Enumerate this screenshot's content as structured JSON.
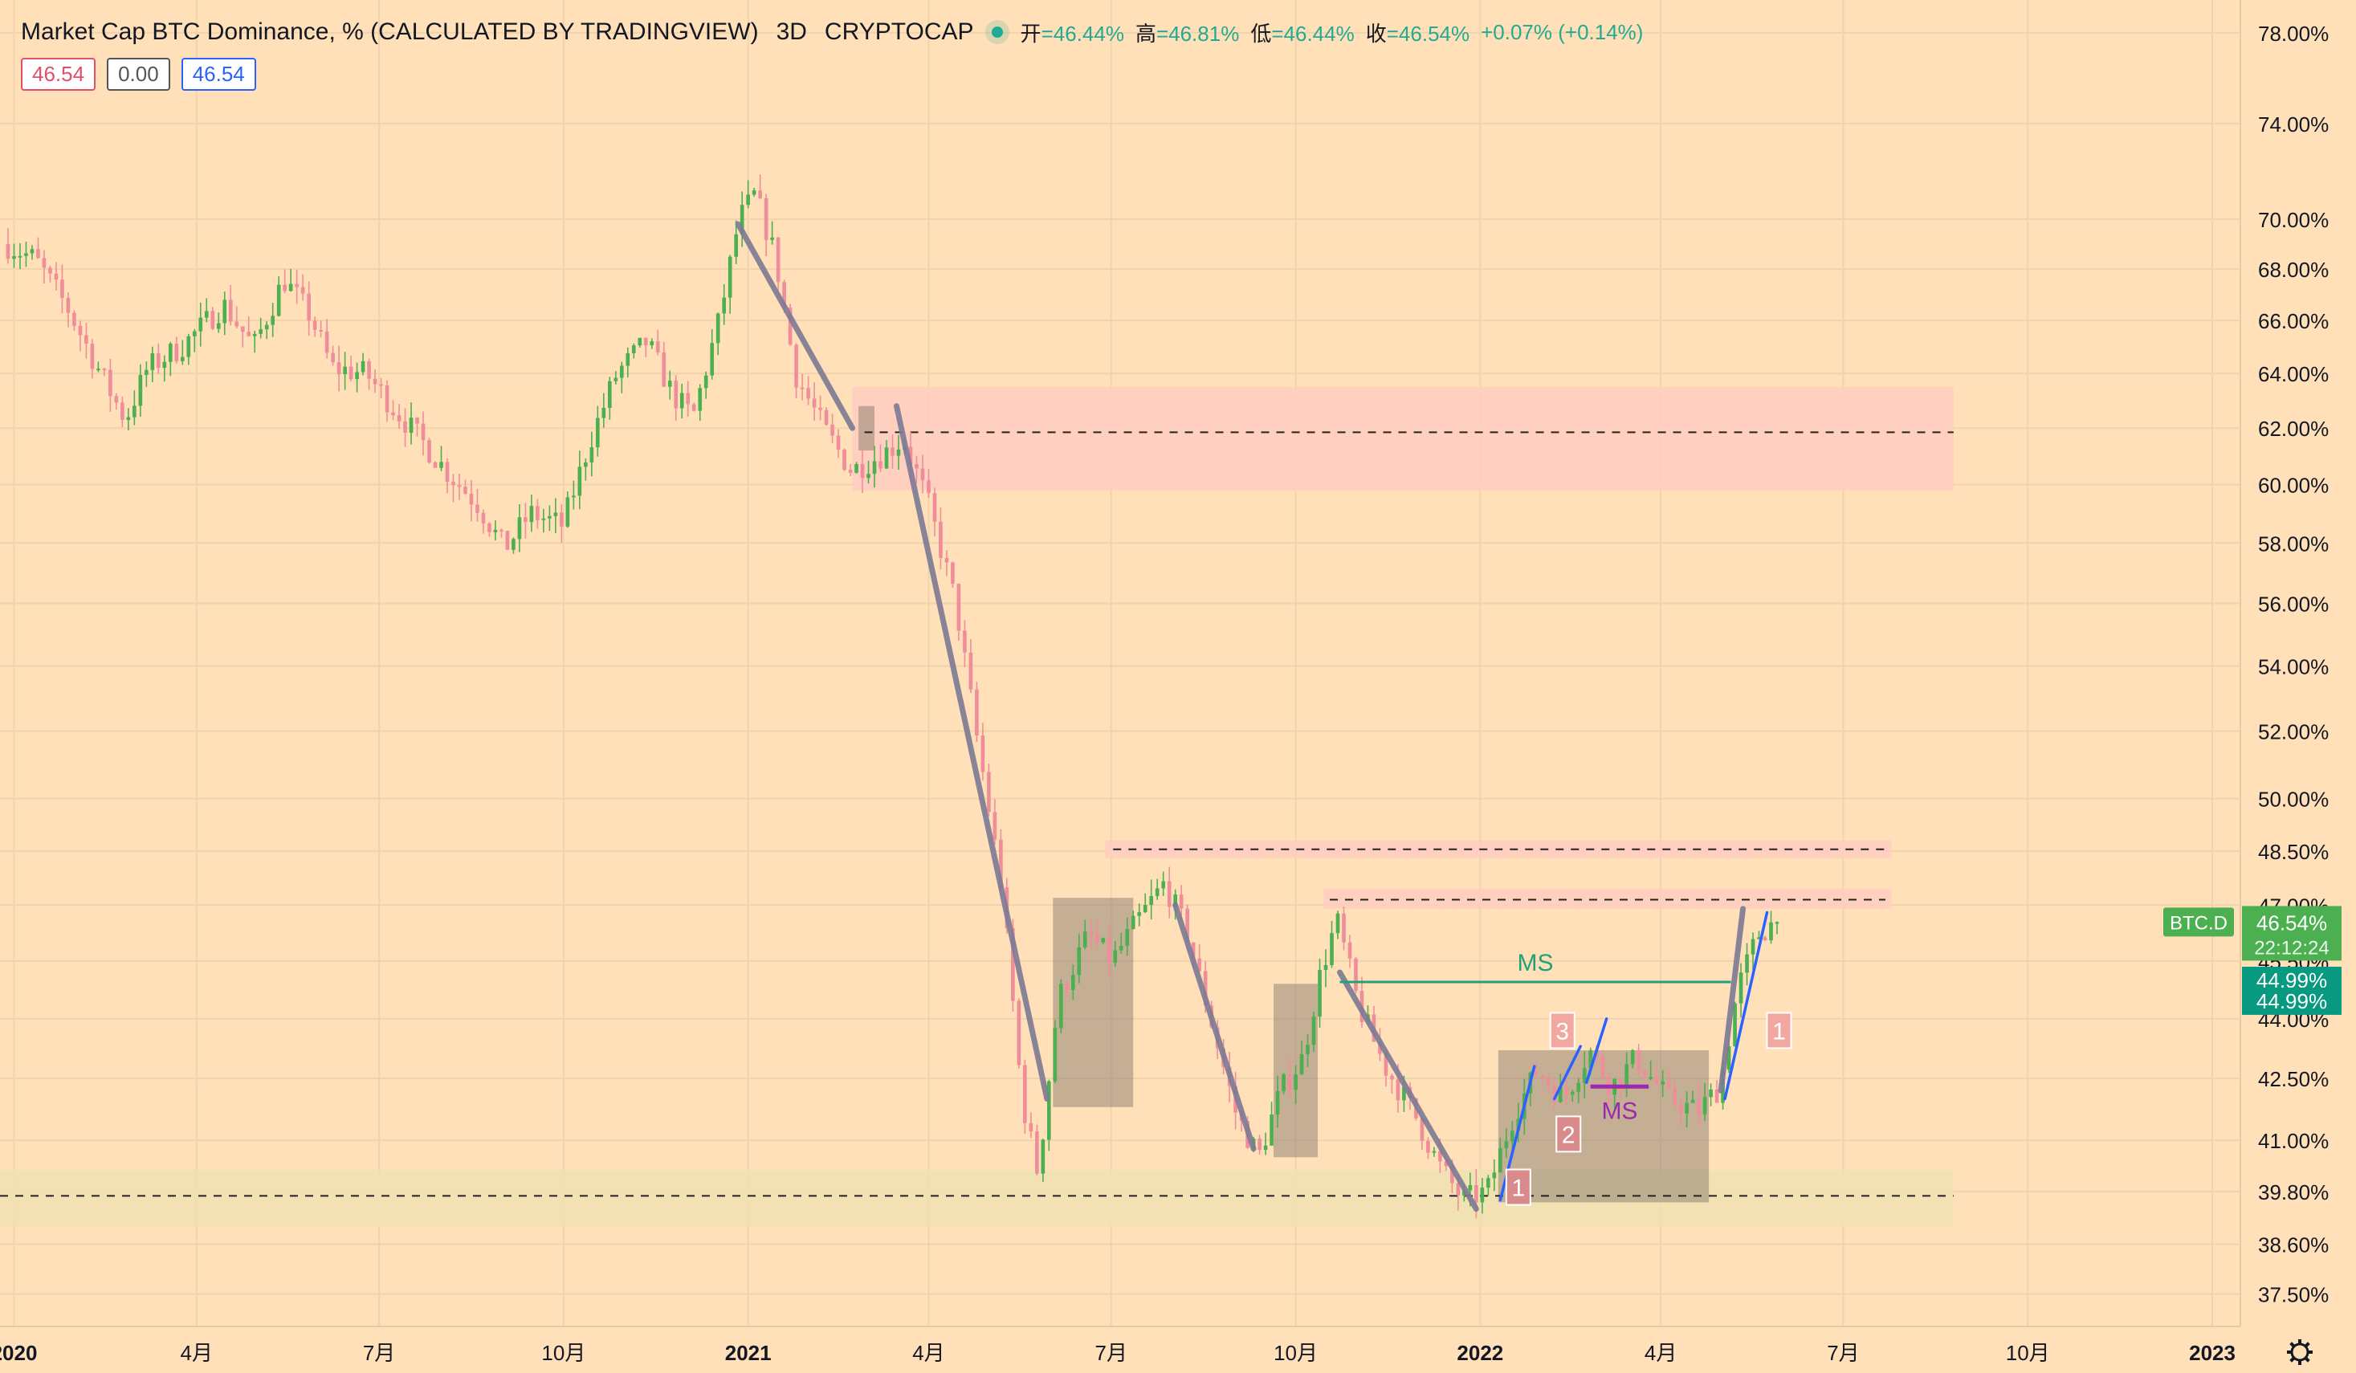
{
  "header": {
    "title": "Market Cap BTC Dominance, % (CALCULATED BY TRADINGVIEW)",
    "interval": "3D",
    "exchange": "CRYPTOCAP",
    "ohlc": [
      {
        "label": "开",
        "value": "46.44%"
      },
      {
        "label": "高",
        "value": "46.81%"
      },
      {
        "label": "低",
        "value": "46.44%"
      },
      {
        "label": "收",
        "value": "46.54%"
      },
      {
        "label": "",
        "value": "+0.07% (+0.14%)"
      }
    ]
  },
  "pills": {
    "sell": "46.54",
    "spread": "0.00",
    "buy": "46.54"
  },
  "chart_data": {
    "type": "candlestick",
    "symbol": "BTC.D",
    "y_scale": "log",
    "ylim": [
      36.8,
      79.5
    ],
    "xlim": [
      "2019-12-25",
      "2023-01-15"
    ],
    "y_ticks": [
      "78.00%",
      "74.00%",
      "70.00%",
      "68.00%",
      "66.00%",
      "64.00%",
      "62.00%",
      "60.00%",
      "58.00%",
      "56.00%",
      "54.00%",
      "52.00%",
      "50.00%",
      "48.50%",
      "47.00%",
      "45.50%",
      "44.00%",
      "42.50%",
      "41.00%",
      "39.80%",
      "38.60%",
      "37.50%"
    ],
    "x_ticks": [
      {
        "label": "2020",
        "date": "2020-01-01"
      },
      {
        "label": "4月",
        "date": "2020-04-01"
      },
      {
        "label": "7月",
        "date": "2020-07-01"
      },
      {
        "label": "10月",
        "date": "2020-10-01"
      },
      {
        "label": "2021",
        "date": "2021-01-01"
      },
      {
        "label": "4月",
        "date": "2021-04-01"
      },
      {
        "label": "7月",
        "date": "2021-07-01"
      },
      {
        "label": "10月",
        "date": "2021-10-01"
      },
      {
        "label": "2022",
        "date": "2022-01-01"
      },
      {
        "label": "4月",
        "date": "2022-04-01"
      },
      {
        "label": "7月",
        "date": "2022-07-01"
      },
      {
        "label": "10月",
        "date": "2022-10-01"
      },
      {
        "label": "2023",
        "date": "2023-01-01"
      }
    ],
    "price_path": [
      [
        "2019-12-28",
        69.0
      ],
      [
        "2020-01-12",
        68.4
      ],
      [
        "2020-01-28",
        66.5
      ],
      [
        "2020-02-15",
        63.8
      ],
      [
        "2020-02-26",
        62.3
      ],
      [
        "2020-03-08",
        64.2
      ],
      [
        "2020-03-25",
        65.0
      ],
      [
        "2020-04-15",
        66.6
      ],
      [
        "2020-04-30",
        65.0
      ],
      [
        "2020-05-15",
        67.6
      ],
      [
        "2020-05-28",
        66.2
      ],
      [
        "2020-06-08",
        64.2
      ],
      [
        "2020-06-25",
        64.0
      ],
      [
        "2020-07-08",
        62.8
      ],
      [
        "2020-07-22",
        61.6
      ],
      [
        "2020-08-05",
        60.4
      ],
      [
        "2020-08-20",
        59.3
      ],
      [
        "2020-09-02",
        57.8
      ],
      [
        "2020-09-15",
        59.0
      ],
      [
        "2020-10-01",
        58.6
      ],
      [
        "2020-10-15",
        61.6
      ],
      [
        "2020-10-28",
        64.0
      ],
      [
        "2020-11-12",
        65.2
      ],
      [
        "2020-11-25",
        63.2
      ],
      [
        "2020-12-05",
        62.4
      ],
      [
        "2020-12-18",
        66.0
      ],
      [
        "2020-12-28",
        70.0
      ],
      [
        "2021-01-05",
        71.0
      ],
      [
        "2021-01-15",
        68.5
      ],
      [
        "2021-01-25",
        64.0
      ],
      [
        "2021-02-08",
        62.0
      ],
      [
        "2021-02-22",
        60.5
      ],
      [
        "2021-03-08",
        61.0
      ],
      [
        "2021-03-20",
        61.6
      ],
      [
        "2021-04-01",
        59.4
      ],
      [
        "2021-04-15",
        56.0
      ],
      [
        "2021-04-25",
        52.0
      ],
      [
        "2021-05-08",
        47.5
      ],
      [
        "2021-05-18",
        42.0
      ],
      [
        "2021-05-26",
        40.2
      ],
      [
        "2021-06-05",
        44.5
      ],
      [
        "2021-06-20",
        46.2
      ],
      [
        "2021-07-02",
        45.5
      ],
      [
        "2021-07-15",
        46.6
      ],
      [
        "2021-07-28",
        47.6
      ],
      [
        "2021-08-08",
        46.3
      ],
      [
        "2021-08-20",
        44.0
      ],
      [
        "2021-09-02",
        41.6
      ],
      [
        "2021-09-13",
        40.6
      ],
      [
        "2021-09-24",
        42.2
      ],
      [
        "2021-10-05",
        43.0
      ],
      [
        "2021-10-14",
        45.2
      ],
      [
        "2021-10-22",
        46.6
      ],
      [
        "2021-11-02",
        44.3
      ],
      [
        "2021-11-15",
        42.8
      ],
      [
        "2021-11-30",
        41.6
      ],
      [
        "2021-12-12",
        40.4
      ],
      [
        "2021-12-24",
        39.6
      ],
      [
        "2022-01-05",
        39.8
      ],
      [
        "2022-01-18",
        41.6
      ],
      [
        "2022-01-30",
        42.7
      ],
      [
        "2022-02-12",
        42.0
      ],
      [
        "2022-02-25",
        43.2
      ],
      [
        "2022-03-08",
        42.3
      ],
      [
        "2022-03-20",
        43.0
      ],
      [
        "2022-04-05",
        42.0
      ],
      [
        "2022-04-20",
        41.7
      ],
      [
        "2022-05-01",
        42.3
      ],
      [
        "2022-05-10",
        44.8
      ],
      [
        "2022-05-20",
        46.2
      ],
      [
        "2022-05-28",
        46.54
      ]
    ],
    "zones": [
      {
        "from": "2021-02-22",
        "to": "2022-08-25",
        "top": 63.5,
        "bottom": 59.8,
        "color": "#ffcdc0"
      },
      {
        "from": "2019-12-25",
        "to": "2022-08-25",
        "top": 40.3,
        "bottom": 39.0,
        "color": "#eee0b2"
      },
      {
        "from": "2021-06-28",
        "to": "2022-07-25",
        "top": 48.8,
        "bottom": 48.3,
        "color": "#ffcdc0"
      },
      {
        "from": "2021-10-15",
        "to": "2022-07-25",
        "top": 47.45,
        "bottom": 46.9,
        "color": "#ffcdc0"
      }
    ],
    "boxes": [
      {
        "from": "2021-06-02",
        "to": "2021-07-12",
        "top": 47.2,
        "bottom": 41.8
      },
      {
        "from": "2021-09-20",
        "to": "2021-10-12",
        "top": 44.9,
        "bottom": 40.6
      },
      {
        "from": "2022-01-10",
        "to": "2022-04-25",
        "top": 43.2,
        "bottom": 39.55
      },
      {
        "from": "2021-02-25",
        "to": "2021-03-05",
        "top": 62.8,
        "bottom": 61.2
      }
    ],
    "level_lines": [
      {
        "from": "2021-02-28",
        "to": "2022-08-25",
        "y": 61.85,
        "style": "dashed"
      },
      {
        "from": "2019-12-25",
        "to": "2022-08-25",
        "y": 39.7,
        "style": "dashed"
      },
      {
        "from": "2021-07-02",
        "to": "2022-07-22",
        "y": 48.55,
        "style": "dashed"
      },
      {
        "from": "2021-10-18",
        "to": "2022-07-22",
        "y": 47.15,
        "style": "dashed"
      }
    ],
    "trend_lines": [
      {
        "from": [
          "2020-12-27",
          69.8
        ],
        "to": [
          "2021-02-22",
          62.0
        ]
      },
      {
        "from": [
          "2021-03-16",
          62.8
        ],
        "to": [
          "2021-05-30",
          42.0
        ]
      },
      {
        "from": [
          "2021-08-02",
          47.0
        ],
        "to": [
          "2021-09-10",
          40.8
        ]
      },
      {
        "from": [
          "2021-10-23",
          45.2
        ],
        "to": [
          "2021-12-30",
          39.4
        ]
      },
      {
        "from": [
          "2022-05-01",
          42.2
        ],
        "to": [
          "2022-05-12",
          46.9
        ]
      }
    ],
    "blue_lines": [
      {
        "from": [
          "2022-01-11",
          39.6
        ],
        "to": [
          "2022-01-28",
          42.8
        ]
      },
      {
        "from": [
          "2022-02-07",
          42.0
        ],
        "to": [
          "2022-02-20",
          43.3
        ]
      },
      {
        "from": [
          "2022-02-23",
          42.4
        ],
        "to": [
          "2022-03-05",
          44.0
        ]
      },
      {
        "from": [
          "2022-05-03",
          42.0
        ],
        "to": [
          "2022-05-24",
          46.8
        ]
      }
    ],
    "ms_lines": [
      {
        "from": [
          "2021-10-23",
          44.95
        ],
        "to": [
          "2022-05-06",
          44.95
        ],
        "color": "#22a179",
        "label": "MS"
      },
      {
        "from": [
          "2022-02-25",
          42.3
        ],
        "to": [
          "2022-03-26",
          42.3
        ],
        "color": "#9c27b0",
        "label": "MS"
      }
    ],
    "number_markers": [
      {
        "text": "1",
        "date": "2022-01-20",
        "y": 39.9,
        "color": "#d98a8a"
      },
      {
        "text": "2",
        "date": "2022-02-14",
        "y": 41.15,
        "color": "#d98a8a"
      },
      {
        "text": "3",
        "date": "2022-02-11",
        "y": 43.7,
        "color": "#f2a8a0"
      },
      {
        "text": "1",
        "date": "2022-05-30",
        "y": 43.7,
        "color": "#f2a8a0"
      }
    ],
    "price_label": {
      "symbol": "BTC.D",
      "value": "46.54%",
      "timer": "22:12:24",
      "y": 46.54
    },
    "secondary_labels": [
      {
        "value": "44.99%",
        "y": 44.99
      },
      {
        "value": "44.99%",
        "y": 44.45
      }
    ]
  }
}
